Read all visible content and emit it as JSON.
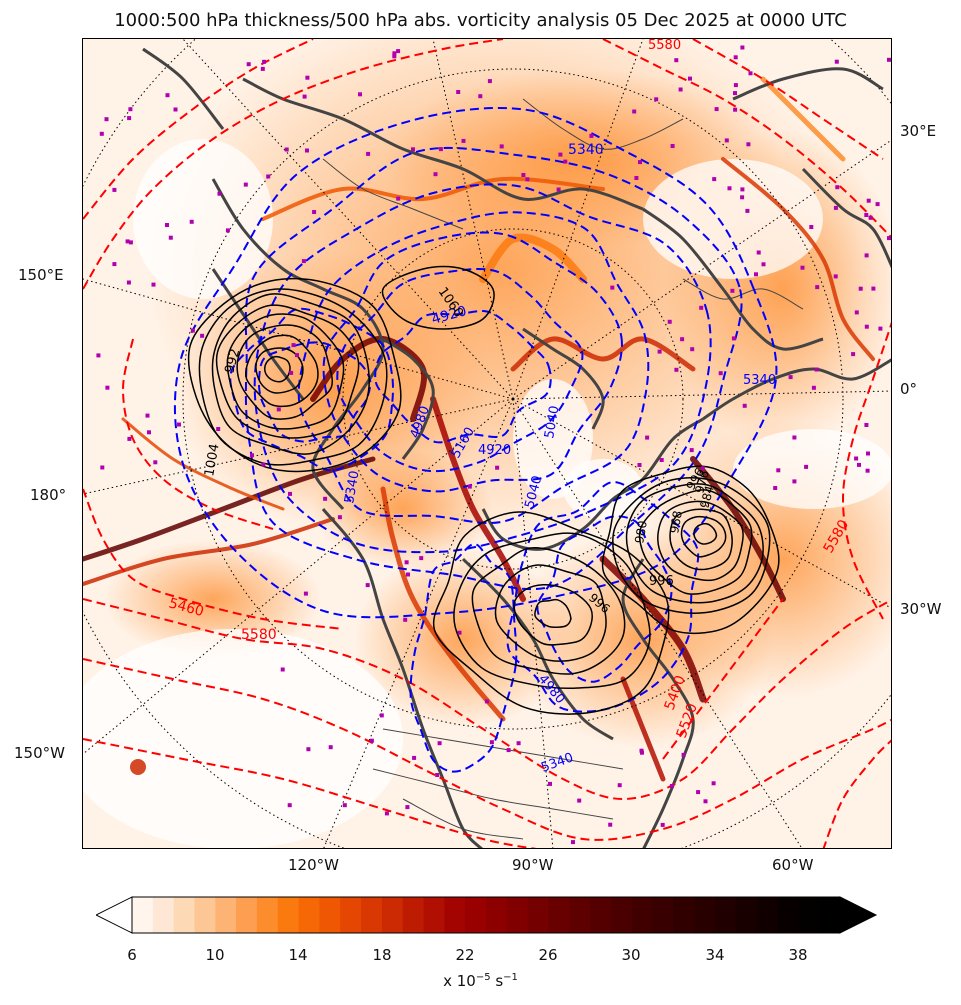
{
  "title": "1000:500 hPa thickness/500 hPa abs. vorticity analysis 05 Dec 2025 at 0000 UTC",
  "map": {
    "projection": "north-polar-stereographic",
    "longitude_labels": {
      "left": [
        "150°E",
        "180°",
        "150°W"
      ],
      "right": [
        "30°E",
        "0°",
        "30°W"
      ],
      "bottom": [
        "120°W",
        "90°W",
        "60°W"
      ]
    },
    "thickness_contour_labels_blue": [
      "5340",
      "4920",
      "5160",
      "5040",
      "4980",
      "4920",
      "5040",
      "5340",
      "5340",
      "4980",
      "5340"
    ],
    "thickness_contour_labels_red": [
      "5580",
      "5460",
      "5580",
      "5580",
      "5520",
      "5400"
    ],
    "pressure_contour_labels_black": [
      "992",
      "1004",
      "1060",
      "996",
      "996",
      "968",
      "980",
      "996",
      "976",
      "984"
    ],
    "colors": {
      "thickness_cold": "#0000ff",
      "thickness_warm": "#ff0000",
      "mslp_contours": "#000000",
      "coastlines": "#444444",
      "markers": "#b000b0"
    }
  },
  "colorbar": {
    "ticks": [
      "6",
      "10",
      "14",
      "18",
      "22",
      "26",
      "30",
      "34",
      "38"
    ],
    "min": 6,
    "max": 40,
    "step": 1,
    "extend": "both",
    "colors": [
      "#fff5ec",
      "#fee8d5",
      "#fdd9b6",
      "#fdc795",
      "#fdb374",
      "#fd9e50",
      "#fd8c2c",
      "#fb7a10",
      "#f66805",
      "#ef5702",
      "#e54702",
      "#d93802",
      "#cc2a02",
      "#be1c02",
      "#b10f01",
      "#a40401",
      "#990000",
      "#8c0000",
      "#800000",
      "#740000",
      "#690000",
      "#5e0000",
      "#540000",
      "#4a0000",
      "#410000",
      "#380000",
      "#300000",
      "#280000",
      "#200000",
      "#180000",
      "#100000",
      "#080000",
      "#030000",
      "#000000"
    ],
    "units": "x 10",
    "units_exponent": "−5",
    "units_suffix": " s",
    "units_suffix_exponent": "−1"
  }
}
